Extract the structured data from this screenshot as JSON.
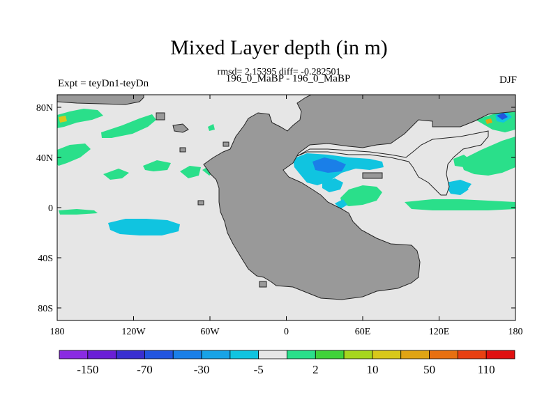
{
  "title": "Mixed Layer depth (in m)",
  "stats": "rmsd= 2.15395 diff= -0.282501",
  "runs": "196_0_MaBP - 196_0_MaBP",
  "experiment": "Expt = teyDn1-teyDn",
  "season": "DJF",
  "colors": {
    "land": "#999999",
    "ocean_background": "#e6e6e6"
  },
  "x_ticks": [
    {
      "lon": -180,
      "label": "180"
    },
    {
      "lon": -120,
      "label": "120W"
    },
    {
      "lon": -60,
      "label": "60W"
    },
    {
      "lon": 0,
      "label": "0"
    },
    {
      "lon": 60,
      "label": "60E"
    },
    {
      "lon": 120,
      "label": "120E"
    },
    {
      "lon": 180,
      "label": "180"
    }
  ],
  "y_ticks": [
    {
      "lat": 80,
      "label": "80N"
    },
    {
      "lat": 40,
      "label": "40N"
    },
    {
      "lat": 0,
      "label": "0"
    },
    {
      "lat": -40,
      "label": "40S"
    },
    {
      "lat": -80,
      "label": "80S"
    }
  ],
  "colorbar": {
    "colors": [
      "#8a2be2",
      "#6a1fd6",
      "#3a2fd0",
      "#2255e0",
      "#1a7fe8",
      "#18a3e6",
      "#10c4e0",
      "#e6e6e6",
      "#2adf8a",
      "#40d23a",
      "#a6d61e",
      "#d8c81a",
      "#e0a414",
      "#e87010",
      "#e84012",
      "#e01010"
    ],
    "labels": [
      {
        "boundary": 1,
        "label": "-150"
      },
      {
        "boundary": 3,
        "label": "-70"
      },
      {
        "boundary": 5,
        "label": "-30"
      },
      {
        "boundary": 7,
        "label": "-5"
      },
      {
        "boundary": 9,
        "label": "2"
      },
      {
        "boundary": 11,
        "label": "10"
      },
      {
        "boundary": 13,
        "label": "50"
      },
      {
        "boundary": 15,
        "label": "110"
      }
    ]
  }
}
